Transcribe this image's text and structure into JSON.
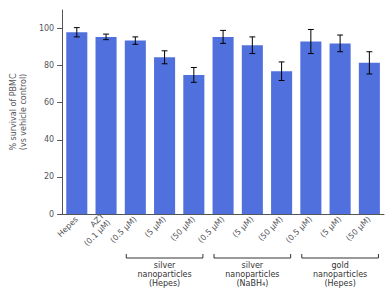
{
  "chart_data": {
    "type": "bar",
    "categories": [
      "Hepes",
      "AZT\n(0.1 μM)",
      "(0.5 μM)",
      "(5 μM)",
      "(50 μM)",
      "(0.5 μM)",
      "(5 μM)",
      "(50 μM)",
      "(0.5 μM)",
      "(5 μM)",
      "(50 μM)"
    ],
    "values": [
      98,
      95.5,
      93.5,
      84.5,
      75,
      95.5,
      91,
      77,
      93,
      92,
      81.5
    ],
    "errors": [
      2.5,
      1.5,
      2.0,
      3.5,
      4.0,
      3.5,
      4.5,
      5.0,
      6.5,
      4.5,
      6.0
    ],
    "ylabel": "% survival of PBMC\n(vs vehicle control)",
    "ylim": [
      0,
      110
    ],
    "yticks": [
      0,
      20,
      40,
      60,
      80,
      100
    ],
    "grid": false,
    "annotations": [
      {
        "text": "silver\nnanoparticles\n(Hepes)",
        "start": 2,
        "end": 4
      },
      {
        "text": "silver\nnanoparticles\n(NaBH₄)",
        "start": 5,
        "end": 7
      },
      {
        "text": "gold\nnanoparticles\n(Hepes)",
        "start": 8,
        "end": 10
      }
    ]
  }
}
